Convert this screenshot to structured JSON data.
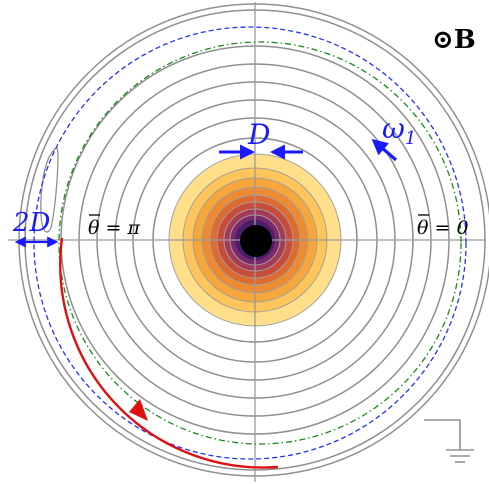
{
  "labels": {
    "field": "⊙B",
    "width_small": "D",
    "width_large": "2D",
    "omega": "ω",
    "omega_sub": "1",
    "theta_pi": "θ = π",
    "theta_zero": "θ = 0"
  },
  "colors": {
    "background": "#ffffff",
    "axis": "#9a9a9a",
    "ring": "#8f8f8f",
    "annotation_blue": "#1a1aff",
    "trajectory_red": "#e01010",
    "dashed_blue": "#2233ff",
    "dashed_green": "#1a8a1a",
    "core": "#000000",
    "contour_fills": [
      "#ffdf8a",
      "#ffc55a",
      "#f7a63a",
      "#ee8a30",
      "#df6a2c",
      "#c94c3a",
      "#a43a55",
      "#7a2a6a",
      "#4a1e6a"
    ]
  },
  "icons": {
    "field": "out-of-page-field-symbol",
    "ground": "ground-symbol",
    "arrowheads": "arrow-icon"
  }
}
